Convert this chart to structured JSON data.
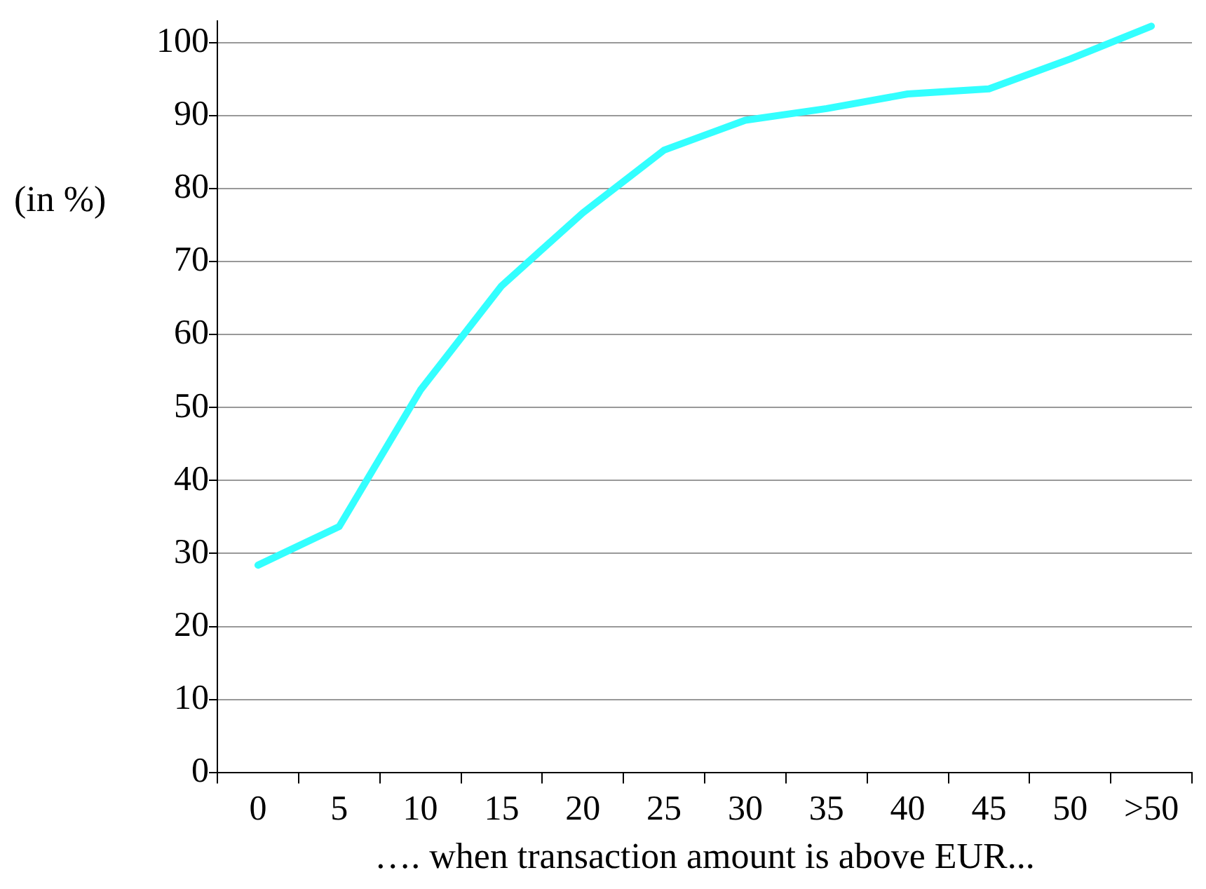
{
  "chart_data": {
    "type": "line",
    "xlabel": "…. when transaction amount is above EUR...",
    "ylabel": "(in %)",
    "categories": [
      "0",
      "5",
      "10",
      "15",
      "20",
      "25",
      "30",
      "35",
      "40",
      "45",
      "50",
      ">50"
    ],
    "series": [
      {
        "color": "#33ffff",
        "values": [
          28.4,
          33.7,
          52.4,
          66.7,
          76.7,
          85.3,
          89.4,
          91,
          93,
          93.7,
          97.8,
          102.3
        ]
      }
    ],
    "ylim": [
      0,
      103
    ],
    "yticks": [
      0,
      10,
      20,
      30,
      40,
      50,
      60,
      70,
      80,
      90,
      100
    ],
    "grid": "y",
    "legend": false,
    "marker": "none",
    "line_style": "solid"
  }
}
